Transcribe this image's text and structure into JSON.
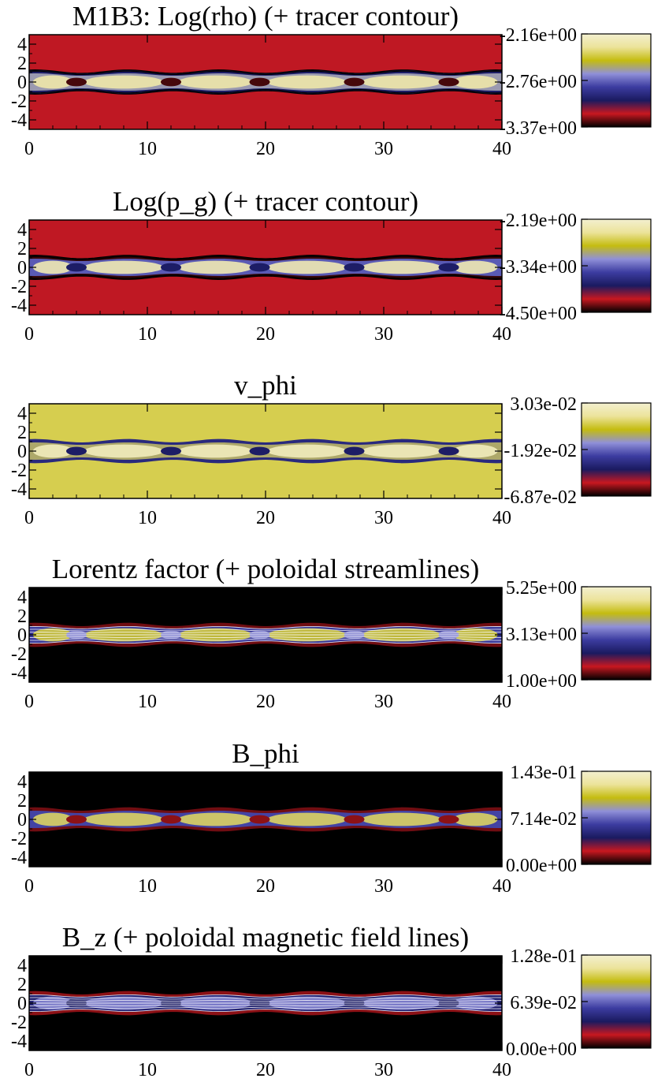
{
  "chart_data": [
    {
      "type": "heatmap",
      "title": "M1B3: Log(rho) (+ tracer contour)",
      "quantity": "Log(rho)",
      "overlay": "tracer contour",
      "background_level": 0.15,
      "core_level": 0.9,
      "knot_level": 0.05,
      "jet_edge_level": 0.3,
      "x_ticks": [
        "0",
        "10",
        "20",
        "30",
        "40"
      ],
      "y_ticks": [
        "4",
        "2",
        "0",
        "-2",
        "-4"
      ],
      "xlim": [
        0,
        40
      ],
      "ylim": [
        -5,
        5
      ],
      "colorbar_labels": [
        "-2.16e+00",
        "-2.76e+00",
        "-3.37e+00"
      ],
      "colorbar_range": [
        -3.37,
        -2.16
      ]
    },
    {
      "type": "heatmap",
      "title": "Log(p_g) (+ tracer contour)",
      "quantity": "Log(p_g)",
      "overlay": "tracer contour",
      "background_level": 0.15,
      "core_level": 0.92,
      "knot_level": 0.3,
      "jet_edge_level": 0.04,
      "x_ticks": [
        "0",
        "10",
        "20",
        "30",
        "40"
      ],
      "y_ticks": [
        "4",
        "2",
        "0",
        "-2",
        "-4"
      ],
      "xlim": [
        0,
        40
      ],
      "ylim": [
        -5,
        5
      ],
      "colorbar_labels": [
        "-2.19e+00",
        "-3.34e+00",
        "-4.50e+00"
      ],
      "colorbar_range": [
        -4.5,
        -2.19
      ]
    },
    {
      "type": "heatmap",
      "title": "v_phi",
      "quantity": "v_phi",
      "overlay": "none",
      "background_level": 0.78,
      "core_level": 0.95,
      "knot_level": 0.3,
      "jet_edge_level": 0.35,
      "x_ticks": [
        "0",
        "10",
        "20",
        "30",
        "40"
      ],
      "y_ticks": [
        "4",
        "2",
        "0",
        "-2",
        "-4"
      ],
      "xlim": [
        0,
        40
      ],
      "ylim": [
        -5,
        5
      ],
      "colorbar_labels": [
        "3.03e-02",
        "-1.92e-02",
        "-6.87e-02"
      ],
      "colorbar_range": [
        -0.0687,
        0.0303
      ]
    },
    {
      "type": "heatmap",
      "title": "Lorentz factor (+ poloidal streamlines)",
      "quantity": "Lorentz factor",
      "overlay": "poloidal streamlines",
      "background_level": 0.0,
      "core_level": 0.75,
      "knot_level": 0.55,
      "jet_edge_level": 0.08,
      "x_ticks": [
        "0",
        "10",
        "20",
        "30",
        "40"
      ],
      "y_ticks": [
        "4",
        "2",
        "0",
        "-2",
        "-4"
      ],
      "xlim": [
        0,
        40
      ],
      "ylim": [
        -5,
        5
      ],
      "colorbar_labels": [
        "5.25e+00",
        "3.13e+00",
        "1.00e+00"
      ],
      "colorbar_range": [
        1.0,
        5.25
      ]
    },
    {
      "type": "heatmap",
      "title": "B_phi",
      "quantity": "B_phi",
      "overlay": "none",
      "background_level": 0.0,
      "core_level": 0.8,
      "knot_level": 0.1,
      "jet_edge_level": 0.08,
      "x_ticks": [
        "0",
        "10",
        "20",
        "30",
        "40"
      ],
      "y_ticks": [
        "4",
        "2",
        "0",
        "-2",
        "-4"
      ],
      "xlim": [
        0,
        40
      ],
      "ylim": [
        -5,
        5
      ],
      "colorbar_labels": [
        "1.43e-01",
        "7.14e-02",
        "0.00e+00"
      ],
      "colorbar_range": [
        0.0,
        0.143
      ]
    },
    {
      "type": "heatmap",
      "title": "B_z (+ poloidal magnetic field lines)",
      "quantity": "B_z",
      "overlay": "poloidal magnetic field lines",
      "background_level": 0.0,
      "core_level": 0.55,
      "knot_level": 0.3,
      "jet_edge_level": 0.1,
      "x_ticks": [
        "0",
        "10",
        "20",
        "30",
        "40"
      ],
      "y_ticks": [
        "4",
        "2",
        "0",
        "-2",
        "-4"
      ],
      "xlim": [
        0,
        40
      ],
      "ylim": [
        -5,
        5
      ],
      "colorbar_labels": [
        "1.28e-01",
        "6.39e-02",
        "0.00e+00"
      ],
      "colorbar_range": [
        0.0,
        0.128
      ]
    }
  ],
  "colormap": [
    "#f3f0d0",
    "#ece39a",
    "#c4bc10",
    "#9090d8",
    "#3c3ca0",
    "#1a1a60",
    "#c81820",
    "#000000"
  ],
  "knot_positions": [
    4,
    12,
    19.5,
    27.5,
    35.5
  ],
  "jet_half_width": 1.1
}
